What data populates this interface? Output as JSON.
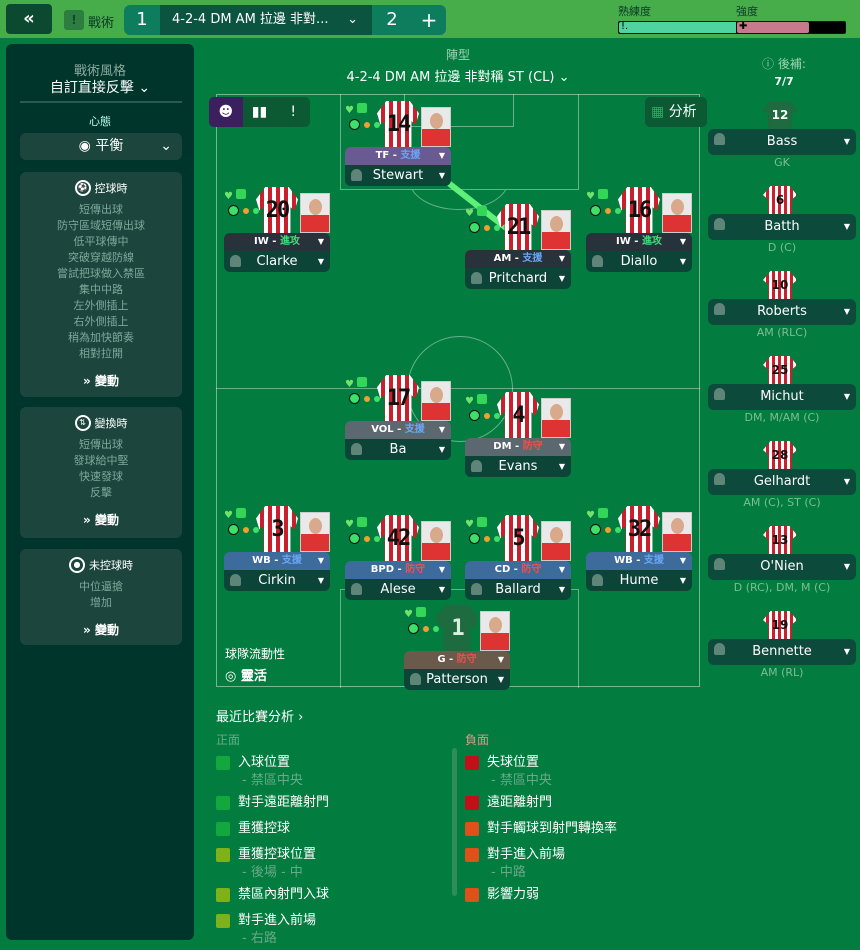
{
  "topbar": {
    "back_icon": "double-chevron-left-icon",
    "tactics_label": "戰術",
    "tab1": "1",
    "tactic_name": "4-2-4 DM AM 拉邊 非對...",
    "tab2": "2",
    "add": "+",
    "familiarity_label": "熟練度",
    "familiarity": 0.94,
    "intensity_label": "強度",
    "intensity": 0.67
  },
  "left": {
    "style_label": "戰術風格",
    "style_value": "自訂直接反擊",
    "mentality_label": "心態",
    "mentality_value": "平衡",
    "in_possession": {
      "title": "控球時",
      "items": [
        "短傳出球",
        "防守區域短傳出球",
        "低平球傳中",
        "突破穿越防線",
        "嘗試把球做入禁區",
        "集中中路",
        "左外側插上",
        "右外側插上",
        "稍為加快節奏",
        "相對拉開"
      ],
      "change": "變動"
    },
    "transition": {
      "title": "變換時",
      "items": [
        "短傳出球",
        "發球給中堅",
        "快速發球",
        "反擊"
      ],
      "change": "變動"
    },
    "out_possession": {
      "title": "未控球時",
      "items": [
        "中位逼搶",
        "增加"
      ],
      "change": "變動"
    }
  },
  "formation": {
    "label": "陣型",
    "value": "4-2-4 DM AM 拉邊 非對稱 ST (CL)",
    "analysis": "分析",
    "fluidity_label": "球隊流動性",
    "fluidity_value": "靈活"
  },
  "duty_colors": {
    "支援": "#6aa6f5",
    "進攻": "#3ee07a",
    "防守": "#f0504a"
  },
  "players": [
    {
      "number": "14",
      "role": "TF",
      "duty": "支援",
      "name": "Stewart"
    },
    {
      "number": "20",
      "role": "IW",
      "duty": "進攻",
      "name": "Clarke"
    },
    {
      "number": "21",
      "role": "AM",
      "duty": "支援",
      "name": "Pritchard"
    },
    {
      "number": "16",
      "role": "IW",
      "duty": "進攻",
      "name": "Diallo"
    },
    {
      "number": "17",
      "role": "VOL",
      "duty": "支援",
      "name": "Ba"
    },
    {
      "number": "4",
      "role": "DM",
      "duty": "防守",
      "name": "Evans"
    },
    {
      "number": "3",
      "role": "WB",
      "duty": "支援",
      "name": "Cirkin"
    },
    {
      "number": "42",
      "role": "BPD",
      "duty": "防守",
      "name": "Alese"
    },
    {
      "number": "5",
      "role": "CD",
      "duty": "防守",
      "name": "Ballard"
    },
    {
      "number": "32",
      "role": "WB",
      "duty": "支援",
      "name": "Hume"
    },
    {
      "number": "1",
      "role": "G",
      "duty": "防守",
      "name": "Patterson"
    }
  ],
  "subs": {
    "label": "後補:",
    "count": "7/7",
    "list": [
      {
        "number": "12",
        "name": "Bass",
        "pos": "GK"
      },
      {
        "number": "6",
        "name": "Batth",
        "pos": "D (C)"
      },
      {
        "number": "10",
        "name": "Roberts",
        "pos": "AM (RLC)"
      },
      {
        "number": "25",
        "name": "Michut",
        "pos": "DM, M/AM (C)"
      },
      {
        "number": "28",
        "name": "Gelhardt",
        "pos": "AM (C), ST (C)"
      },
      {
        "number": "13",
        "name": "O'Nien",
        "pos": "D (RC), DM, M (C)"
      },
      {
        "number": "19",
        "name": "Bennette",
        "pos": "AM (RL)"
      }
    ]
  },
  "analysis": {
    "title": "最近比賽分析",
    "positive_label": "正面",
    "negative_label": "負面",
    "positive": [
      {
        "text": "入球位置",
        "detail": "- 禁區中央",
        "color": "#12a83e"
      },
      {
        "text": "對手遠距離射門",
        "color": "#12a83e"
      },
      {
        "text": "重獲控球",
        "color": "#12a83e"
      },
      {
        "text": "重獲控球位置",
        "detail": "- 後場 - 中",
        "color": "#7fb21a"
      },
      {
        "text": "禁區內射門入球",
        "color": "#7fb21a"
      },
      {
        "text": "對手進入前場",
        "detail": "- 右路",
        "color": "#7fb21a"
      }
    ],
    "negative": [
      {
        "text": "失球位置",
        "detail": "- 禁區中央",
        "color": "#c0101a"
      },
      {
        "text": "遠距離射門",
        "color": "#c0101a"
      },
      {
        "text": "對手觸球到射門轉換率",
        "color": "#e0501a"
      },
      {
        "text": "對手進入前場",
        "detail": "- 中路",
        "color": "#e0501a"
      },
      {
        "text": "影響力弱",
        "color": "#e0501a"
      }
    ]
  }
}
